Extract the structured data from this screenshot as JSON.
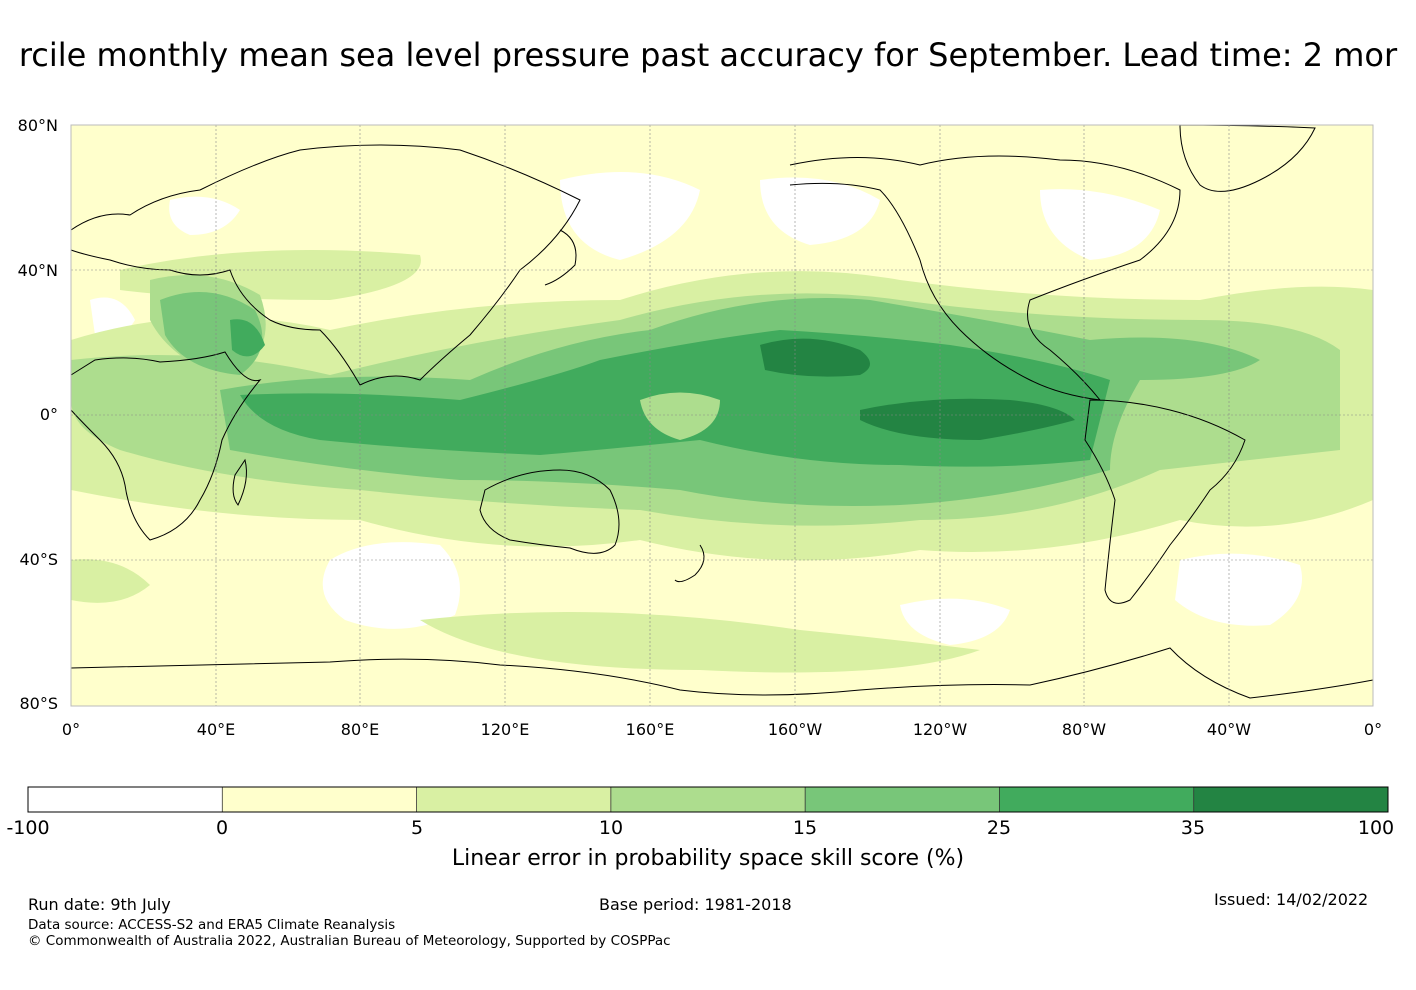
{
  "title": "rcile monthly mean sea level pressure past accuracy for September. Lead time: 2 mor",
  "map": {
    "lat_labels": [
      "80°N",
      "40°N",
      "0°",
      "40°S",
      "80°S"
    ],
    "lon_labels": [
      "0°",
      "40°E",
      "80°E",
      "120°E",
      "160°E",
      "160°W",
      "120°W",
      "80°W",
      "40°W",
      "0°"
    ]
  },
  "legend": {
    "tick_labels": [
      "-100",
      "0",
      "5",
      "10",
      "15",
      "25",
      "35",
      "100"
    ],
    "colors": [
      "#ffffff",
      "#ffffcc",
      "#d9f0a3",
      "#addd8e",
      "#78c679",
      "#41ab5d",
      "#238443"
    ],
    "caption": "Linear error in probability space skill score (%)"
  },
  "footer": {
    "run_date": "Run date: 9th July",
    "base_period": "Base period: 1981-2018",
    "issued": "Issued: 14/02/2022",
    "data_source": "Data source: ACCESS-S2 and ERA5 Climate Reanalysis",
    "copyright": "© Commonwealth of Australia 2022, Australian Bureau of Meteorology, Supported by COSPPac"
  }
}
